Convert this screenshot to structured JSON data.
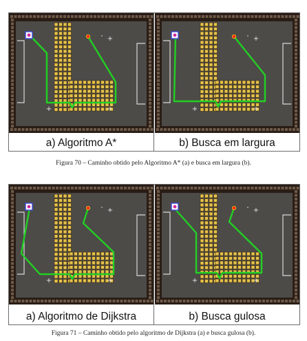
{
  "figures": [
    {
      "panels": [
        {
          "label": "a) Algoritmo A*",
          "path": "astar"
        },
        {
          "label": "b) Busca em largura",
          "path": "bfs"
        }
      ],
      "caption": "Figura 70 – Caminho obtido pelo Algoritmo A* (a) e busca em largura (b)."
    },
    {
      "panels": [
        {
          "label": "a) Algoritmo de Dijkstra",
          "path": "dijkstra"
        },
        {
          "label": "b) Busca gulosa",
          "path": "greedy"
        }
      ],
      "caption": "Figura 71 – Caminho obtido pelo algoritmo de Dijkstra (a) e busca gulosa (b)."
    }
  ],
  "colors": {
    "field": "#4d4b48",
    "border_tile": "#2a1d16",
    "obstacle_tile": "#e6c24a",
    "path": "#22d023",
    "goal": "#ff2020",
    "robot": "#3a4bd8"
  }
}
